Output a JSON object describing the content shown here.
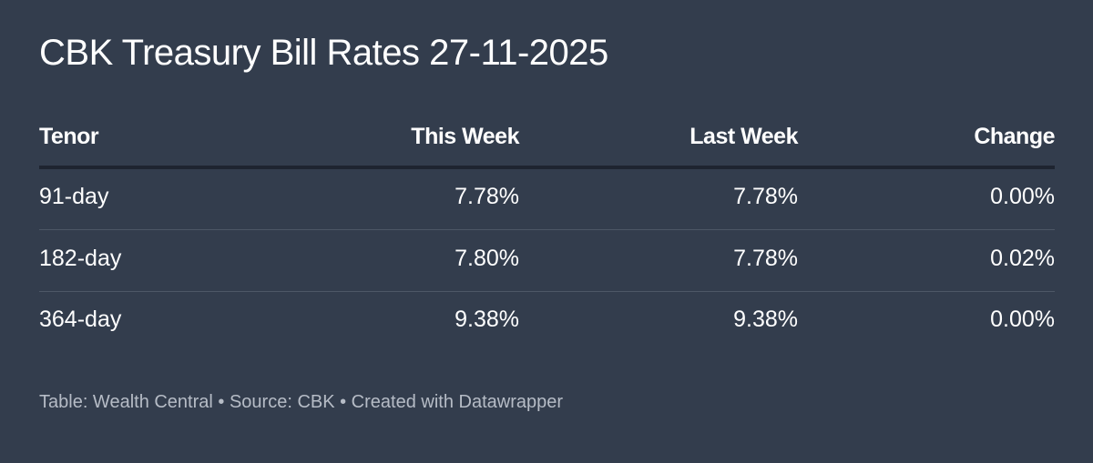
{
  "title": "CBK Treasury Bill Rates 27-11-2025",
  "table": {
    "header": [
      "Tenor",
      "This Week",
      "Last Week",
      "Change"
    ],
    "rows": [
      [
        "91-day",
        "7.78%",
        "7.78%",
        "0.00%"
      ],
      [
        "182-day",
        "7.80%",
        "7.78%",
        "0.02%"
      ],
      [
        "364-day",
        "9.38%",
        "9.38%",
        "0.00%"
      ]
    ]
  },
  "footer": "Table: Wealth Central • Source: CBK • Created with Datawrapper"
}
